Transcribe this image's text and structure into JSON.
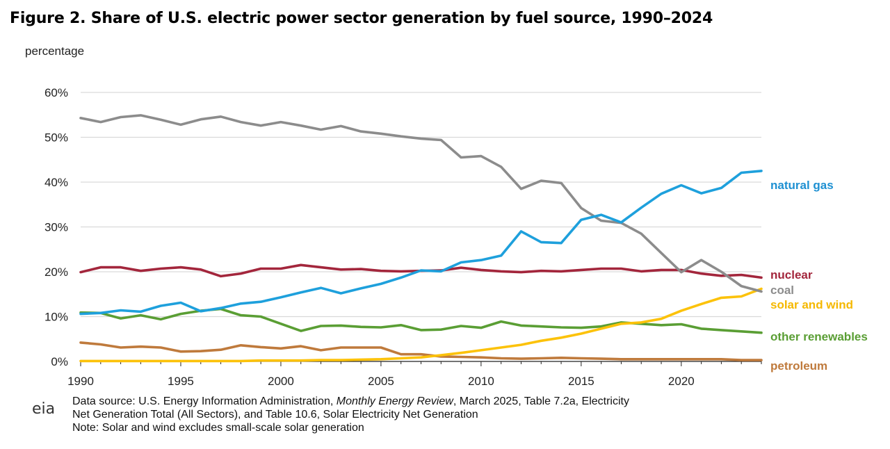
{
  "figure_title": "Figure 2. Share of U.S. electric power sector generation by fuel source, 1990–2024",
  "unit_label": "percentage",
  "footer": {
    "logo_text": "eia",
    "source_prefix": "Data source: U.S. Energy Information Administration, ",
    "source_italic": "Monthly Energy Review",
    "source_suffix": ", March 2025, Table 7.2a, Electricity",
    "source_line2": "Net Generation Total (All Sectors), and Table 10.6, Solar Electricity Net Generation",
    "note": "Note: Solar and wind excludes small-scale solar generation"
  },
  "chart_data": {
    "type": "line",
    "title": "Figure 2. Share of U.S. electric power sector generation by fuel source, 1990–2024",
    "xlabel": "",
    "ylabel": "percentage",
    "xlim": [
      1990,
      2024
    ],
    "ylim": [
      0,
      60
    ],
    "x_ticks": [
      1990,
      1995,
      2000,
      2005,
      2010,
      2015,
      2020
    ],
    "y_ticks": [
      "0%",
      "10%",
      "20%",
      "30%",
      "40%",
      "50%",
      "60%"
    ],
    "grid": true,
    "legend": "direct labels at right end of lines",
    "x": [
      1990,
      1991,
      1992,
      1993,
      1994,
      1995,
      1996,
      1997,
      1998,
      1999,
      2000,
      2001,
      2002,
      2003,
      2004,
      2005,
      2006,
      2007,
      2008,
      2009,
      2010,
      2011,
      2012,
      2013,
      2014,
      2015,
      2016,
      2017,
      2018,
      2019,
      2020,
      2021,
      2022,
      2023,
      2024
    ],
    "series": [
      {
        "name": "coal",
        "color": "#8c8c8c",
        "values": [
          54.3,
          53.4,
          54.5,
          54.9,
          53.9,
          52.8,
          54.0,
          54.6,
          53.4,
          52.6,
          53.4,
          52.6,
          51.7,
          52.5,
          51.3,
          50.8,
          50.2,
          49.7,
          49.4,
          45.5,
          45.8,
          43.4,
          38.5,
          40.3,
          39.8,
          34.2,
          31.4,
          30.9,
          28.5,
          24.2,
          19.9,
          22.6,
          20.0,
          16.8,
          15.6
        ]
      },
      {
        "name": "natural gas",
        "color": "#1ea0dc",
        "values": [
          10.6,
          10.8,
          11.4,
          11.1,
          12.4,
          13.1,
          11.2,
          11.9,
          12.9,
          13.3,
          14.3,
          15.4,
          16.4,
          15.2,
          16.3,
          17.3,
          18.7,
          20.3,
          20.1,
          22.1,
          22.6,
          23.6,
          29.0,
          26.6,
          26.4,
          31.6,
          32.7,
          31.0,
          34.3,
          37.4,
          39.3,
          37.5,
          38.7,
          42.1,
          42.5
        ]
      },
      {
        "name": "nuclear",
        "color": "#a3263c",
        "values": [
          19.9,
          21.0,
          21.0,
          20.2,
          20.7,
          21.0,
          20.5,
          19.0,
          19.6,
          20.7,
          20.7,
          21.5,
          21.0,
          20.5,
          20.6,
          20.2,
          20.1,
          20.2,
          20.3,
          20.9,
          20.4,
          20.1,
          19.9,
          20.2,
          20.1,
          20.4,
          20.7,
          20.7,
          20.1,
          20.4,
          20.4,
          19.6,
          19.1,
          19.3,
          18.7
        ]
      },
      {
        "name": "solar and wind",
        "color": "#fcc20a",
        "values": [
          0.1,
          0.1,
          0.1,
          0.1,
          0.1,
          0.1,
          0.1,
          0.1,
          0.1,
          0.2,
          0.2,
          0.2,
          0.3,
          0.3,
          0.4,
          0.5,
          0.7,
          0.9,
          1.4,
          1.9,
          2.5,
          3.1,
          3.7,
          4.6,
          5.3,
          6.2,
          7.3,
          8.4,
          8.7,
          9.5,
          11.3,
          12.8,
          14.2,
          14.5,
          16.2
        ]
      },
      {
        "name": "other renewables",
        "color": "#5a9e34",
        "values": [
          10.9,
          10.8,
          9.6,
          10.3,
          9.4,
          10.6,
          11.3,
          11.7,
          10.3,
          10.0,
          8.4,
          6.8,
          7.9,
          8.0,
          7.7,
          7.6,
          8.1,
          7.0,
          7.1,
          7.9,
          7.5,
          8.9,
          8.0,
          7.8,
          7.6,
          7.5,
          7.8,
          8.7,
          8.4,
          8.1,
          8.3,
          7.3,
          7.0,
          6.7,
          6.4
        ]
      },
      {
        "name": "petroleum",
        "color": "#bf7a3c",
        "values": [
          4.2,
          3.8,
          3.1,
          3.3,
          3.1,
          2.2,
          2.3,
          2.6,
          3.6,
          3.2,
          2.9,
          3.4,
          2.5,
          3.1,
          3.1,
          3.1,
          1.6,
          1.6,
          1.1,
          1.0,
          0.9,
          0.7,
          0.6,
          0.7,
          0.8,
          0.7,
          0.6,
          0.5,
          0.5,
          0.5,
          0.5,
          0.5,
          0.5,
          0.3,
          0.3
        ]
      }
    ],
    "end_labels": [
      {
        "name": "natural gas",
        "color": "#1e90d2"
      },
      {
        "name": "nuclear",
        "color": "#a3263c"
      },
      {
        "name": "coal",
        "color": "#8c8c8c"
      },
      {
        "name": "solar and wind",
        "color": "#f5b800"
      },
      {
        "name": "other renewables",
        "color": "#5a9e34"
      },
      {
        "name": "petroleum",
        "color": "#bf7a3c"
      }
    ]
  }
}
